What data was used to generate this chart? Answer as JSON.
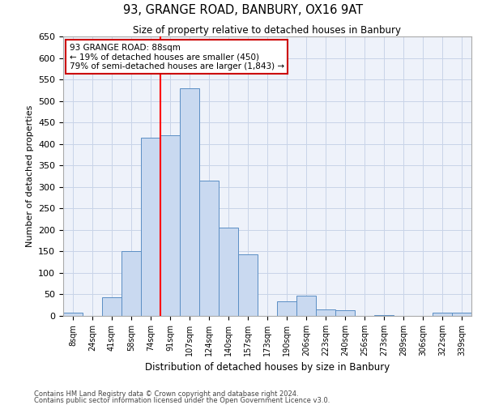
{
  "title": "93, GRANGE ROAD, BANBURY, OX16 9AT",
  "subtitle": "Size of property relative to detached houses in Banbury",
  "xlabel": "Distribution of detached houses by size in Banbury",
  "ylabel": "Number of detached properties",
  "bar_labels": [
    "8sqm",
    "24sqm",
    "41sqm",
    "58sqm",
    "74sqm",
    "91sqm",
    "107sqm",
    "124sqm",
    "140sqm",
    "157sqm",
    "173sqm",
    "190sqm",
    "206sqm",
    "223sqm",
    "240sqm",
    "256sqm",
    "273sqm",
    "289sqm",
    "306sqm",
    "322sqm",
    "339sqm"
  ],
  "bar_values": [
    8,
    0,
    44,
    150,
    415,
    420,
    530,
    315,
    205,
    143,
    0,
    33,
    48,
    16,
    13,
    0,
    2,
    0,
    0,
    7,
    7
  ],
  "bar_color": "#c9d9f0",
  "bar_edge_color": "#5b8ec4",
  "vline_x": 4.5,
  "vline_color": "red",
  "ylim": [
    0,
    650
  ],
  "yticks": [
    0,
    50,
    100,
    150,
    200,
    250,
    300,
    350,
    400,
    450,
    500,
    550,
    600,
    650
  ],
  "annotation_title": "93 GRANGE ROAD: 88sqm",
  "annotation_line1": "← 19% of detached houses are smaller (450)",
  "annotation_line2": "79% of semi-detached houses are larger (1,843) →",
  "annotation_box_color": "#cc0000",
  "footer_line1": "Contains HM Land Registry data © Crown copyright and database right 2024.",
  "footer_line2": "Contains public sector information licensed under the Open Government Licence v3.0.",
  "bg_color": "#eef2fa",
  "grid_color": "#c8d4e8"
}
